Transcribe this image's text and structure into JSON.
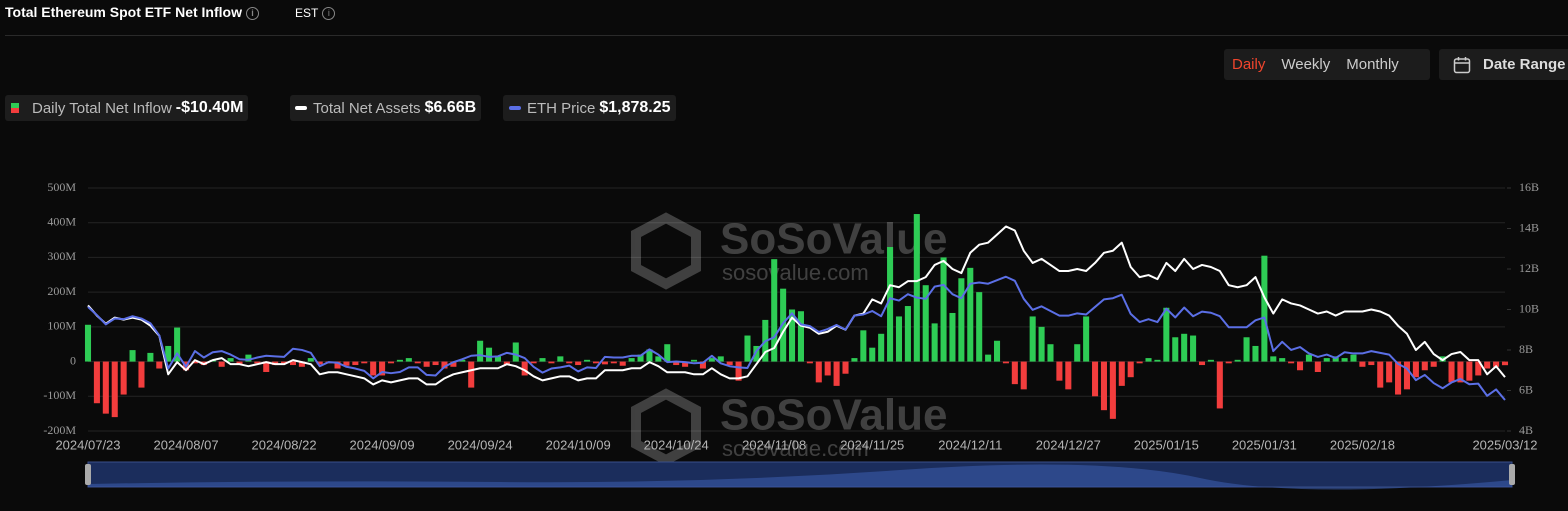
{
  "header": {
    "title": "Total Ethereum Spot ETF Net Inflow",
    "timezone": "EST",
    "buttons": [
      "Daily",
      "Weekly",
      "Monthly"
    ],
    "date_range": "Date Range"
  },
  "watermark": {
    "brand": "SoSoValue",
    "url": "sosovalue.com"
  },
  "chart_data": {
    "type": "bar",
    "categories": [
      "2024/07/23",
      null,
      null,
      null,
      null,
      null,
      null,
      null,
      null,
      null,
      null,
      "2024/08/07",
      null,
      null,
      null,
      null,
      null,
      null,
      null,
      null,
      null,
      null,
      "2024/08/22",
      null,
      null,
      null,
      null,
      null,
      null,
      null,
      null,
      null,
      null,
      "2024/09/09",
      null,
      null,
      null,
      null,
      null,
      null,
      null,
      null,
      null,
      null,
      "2024/09/24",
      null,
      null,
      null,
      null,
      null,
      null,
      null,
      null,
      null,
      null,
      "2024/10/09",
      null,
      null,
      null,
      null,
      null,
      null,
      null,
      null,
      null,
      null,
      "2024/10/24",
      null,
      null,
      null,
      null,
      null,
      null,
      null,
      null,
      null,
      null,
      "2024/11/08",
      null,
      null,
      null,
      null,
      null,
      null,
      null,
      null,
      null,
      null,
      "2024/11/25",
      null,
      null,
      null,
      null,
      null,
      null,
      null,
      null,
      null,
      null,
      "2024/12/11",
      null,
      null,
      null,
      null,
      null,
      null,
      null,
      null,
      null,
      null,
      "2024/12/27",
      null,
      null,
      null,
      null,
      null,
      null,
      null,
      null,
      null,
      null,
      "2025/01/15",
      null,
      null,
      null,
      null,
      null,
      null,
      null,
      null,
      null,
      null,
      "2025/01/31",
      null,
      null,
      null,
      null,
      null,
      null,
      null,
      null,
      null,
      null,
      "2025/02/18",
      null,
      null,
      null,
      null,
      null,
      null,
      null,
      null,
      null,
      null,
      null,
      null,
      null,
      null,
      null,
      "2025/03/12"
    ],
    "series": [
      {
        "name": "Daily Total Net Inflow",
        "type": "bar",
        "color": "#2ecc55",
        "negative_color": "#f23d3d",
        "last_label": "-$10.40M",
        "values": [
          106,
          -120,
          -150,
          -160,
          -95,
          33,
          -75,
          25,
          -20,
          45,
          98,
          -25,
          -5,
          -10,
          5,
          -15,
          10,
          -8,
          20,
          -5,
          -30,
          -10,
          -5,
          -10,
          -15,
          10,
          -8,
          -5,
          -20,
          -12,
          -10,
          -5,
          -40,
          -40,
          -5,
          5,
          10,
          -5,
          -15,
          -10,
          -20,
          -15,
          5,
          -75,
          60,
          40,
          15,
          -10,
          55,
          -40,
          -5,
          10,
          -5,
          15,
          -5,
          -10,
          5,
          -5,
          -8,
          -5,
          -12,
          10,
          20,
          35,
          15,
          50,
          -10,
          -15,
          5,
          -20,
          10,
          15,
          -10,
          -55,
          75,
          45,
          120,
          295,
          210,
          150,
          145,
          -5,
          -60,
          -40,
          -70,
          -35,
          10,
          90,
          40,
          80,
          330,
          130,
          160,
          425,
          220,
          110,
          300,
          140,
          240,
          270,
          200,
          20,
          60,
          -5,
          -65,
          -80,
          130,
          100,
          50,
          -55,
          -80,
          50,
          130,
          -100,
          -140,
          -165,
          -70,
          -45,
          -5,
          10,
          5,
          155,
          70,
          80,
          75,
          -10,
          5,
          -135,
          -5,
          5,
          70,
          45,
          305,
          15,
          10,
          -5,
          -25,
          20,
          -30,
          10,
          15,
          10,
          20,
          -15,
          -10,
          -75,
          -60,
          -95,
          -80,
          -45,
          -25,
          -15,
          15,
          -60,
          -60,
          -55,
          -40,
          -20,
          -15,
          -10.4
        ]
      },
      {
        "name": "Total Net Assets",
        "type": "line",
        "color": "#ffffff",
        "axis": "y2",
        "last_label": "$6.66B",
        "values": [
          10.2,
          9.7,
          9.3,
          9.6,
          9.5,
          9.6,
          9.5,
          9.2,
          8.7,
          6.8,
          7.4,
          7.0,
          7.5,
          7.3,
          7.5,
          7.6,
          7.3,
          7.3,
          7.2,
          7.3,
          7.4,
          7.3,
          7.3,
          7.5,
          7.4,
          7.3,
          6.8,
          6.9,
          6.9,
          6.8,
          6.7,
          6.6,
          6.3,
          6.5,
          6.4,
          6.5,
          6.6,
          6.6,
          6.3,
          6.3,
          6.6,
          6.8,
          6.9,
          7.0,
          7.1,
          7.1,
          7.1,
          7.3,
          7.2,
          7.0,
          6.7,
          6.5,
          6.6,
          6.7,
          6.7,
          6.5,
          6.6,
          6.6,
          7.0,
          7.0,
          7.0,
          7.1,
          7.1,
          7.4,
          7.2,
          6.9,
          6.9,
          6.9,
          6.8,
          6.8,
          7.1,
          6.8,
          6.6,
          6.6,
          6.7,
          7.3,
          7.9,
          8.1,
          8.9,
          9.6,
          9.2,
          9.1,
          8.8,
          8.9,
          9.2,
          9.0,
          9.7,
          9.8,
          10.5,
          10.3,
          11.2,
          11.1,
          11.4,
          11.4,
          11.6,
          12.2,
          12.4,
          12.0,
          11.8,
          12.8,
          13.2,
          13.3,
          13.7,
          14.1,
          13.9,
          12.9,
          12.3,
          12.5,
          12.2,
          11.9,
          11.9,
          12.0,
          11.9,
          12.3,
          12.8,
          12.9,
          13.3,
          12.1,
          11.6,
          11.7,
          11.5,
          12.3,
          11.9,
          12.5,
          12.0,
          12.2,
          12.1,
          11.9,
          11.2,
          11.1,
          11.2,
          11.6,
          10.6,
          9.8,
          10.5,
          10.3,
          10.2,
          10.0,
          9.8,
          9.9,
          9.7,
          9.9,
          9.9,
          9.9,
          10.0,
          9.9,
          9.7,
          9.2,
          8.8,
          8.0,
          8.4,
          7.8,
          7.5,
          7.8,
          7.9,
          7.5,
          7.5,
          6.8,
          7.2,
          6.66
        ]
      },
      {
        "name": "ETH Price",
        "type": "line",
        "color": "#5b6fe6",
        "axis": "y3",
        "last_label": "$1,878.25",
        "values": [
          3480,
          3340,
          3180,
          3280,
          3270,
          3320,
          3280,
          3200,
          2990,
          2420,
          2680,
          2450,
          2720,
          2610,
          2700,
          2720,
          2660,
          2580,
          2570,
          2610,
          2640,
          2630,
          2620,
          2760,
          2740,
          2690,
          2460,
          2530,
          2520,
          2450,
          2420,
          2380,
          2250,
          2360,
          2340,
          2360,
          2440,
          2440,
          2310,
          2300,
          2450,
          2530,
          2580,
          2640,
          2650,
          2620,
          2630,
          2690,
          2660,
          2600,
          2450,
          2350,
          2420,
          2440,
          2470,
          2370,
          2440,
          2430,
          2620,
          2610,
          2610,
          2640,
          2640,
          2750,
          2660,
          2530,
          2540,
          2530,
          2510,
          2520,
          2640,
          2510,
          2460,
          2440,
          2430,
          2720,
          2890,
          2960,
          3200,
          3370,
          3180,
          3150,
          3050,
          3100,
          3170,
          3090,
          3330,
          3350,
          3410,
          3320,
          3630,
          3590,
          3700,
          3640,
          3620,
          3830,
          3860,
          3700,
          3630,
          3880,
          3900,
          3880,
          3940,
          4000,
          3930,
          3620,
          3430,
          3490,
          3410,
          3330,
          3330,
          3370,
          3350,
          3480,
          3610,
          3630,
          3690,
          3360,
          3220,
          3270,
          3220,
          3450,
          3300,
          3470,
          3320,
          3400,
          3380,
          3320,
          3130,
          3130,
          3130,
          3250,
          3300,
          2720,
          2880,
          2740,
          2790,
          2680,
          2620,
          2660,
          2600,
          2700,
          2680,
          2680,
          2720,
          2690,
          2660,
          2500,
          2420,
          2220,
          2310,
          2170,
          2080,
          2180,
          2240,
          2150,
          2160,
          1950,
          2060,
          1878.25
        ]
      }
    ],
    "ylim": [
      -200,
      500
    ],
    "yticks": [
      {
        "value": -200,
        "label": "-200M"
      },
      {
        "value": -100,
        "label": "-100M"
      },
      0,
      {
        "value": 100,
        "label": "100M"
      },
      {
        "value": 200,
        "label": "200M"
      },
      {
        "value": 300,
        "label": "300M"
      },
      {
        "value": 400,
        "label": "400M"
      },
      {
        "value": 500,
        "label": "500M"
      }
    ],
    "y2lim": [
      4,
      16
    ],
    "y2ticks": [
      {
        "value": 4,
        "label": "4B"
      },
      {
        "value": 6,
        "label": "6B"
      },
      {
        "value": 8,
        "label": "8B"
      },
      {
        "value": 10,
        "label": "10B"
      },
      {
        "value": 12,
        "label": "12B"
      },
      {
        "value": 14,
        "label": "14B"
      },
      {
        "value": 16,
        "label": "16B"
      }
    ],
    "y3lim": [
      1345,
      5527
    ],
    "grid": true
  }
}
